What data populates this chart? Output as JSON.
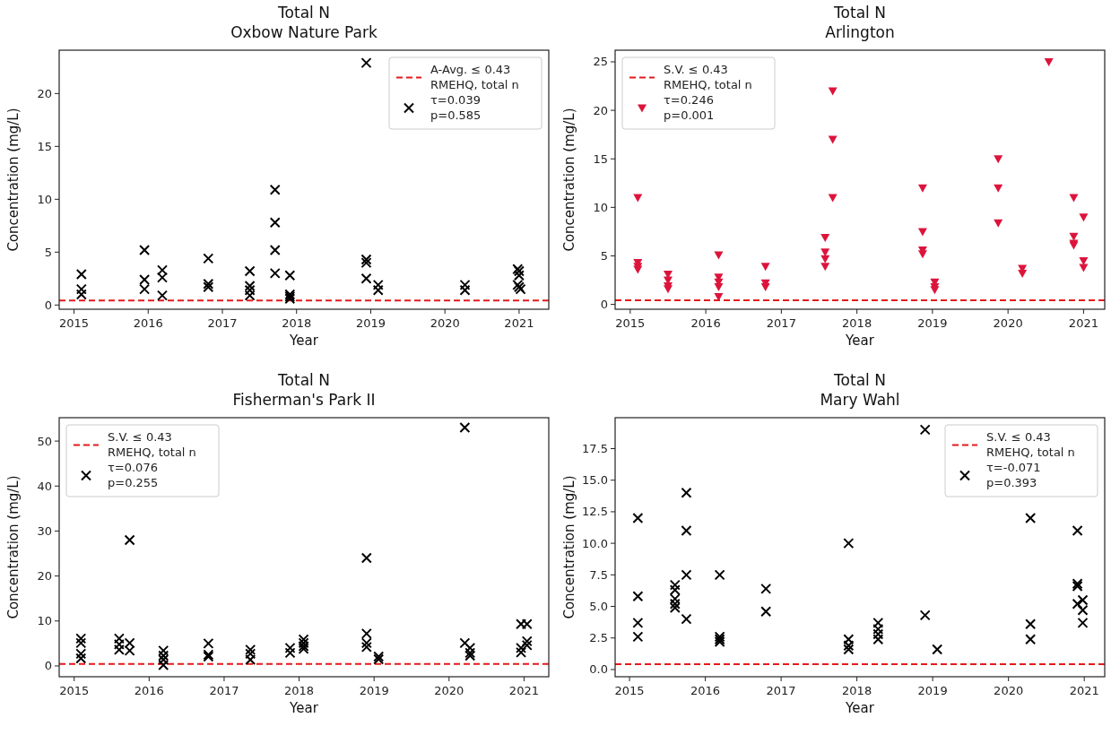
{
  "chart_data": [
    {
      "type": "scatter",
      "title": "Total N",
      "subtitle": "Oxbow Nature Park",
      "xlabel": "Year",
      "ylabel": "Concentration (mg/L)",
      "xlim": [
        2014.8,
        2021.4
      ],
      "ylim": [
        -0.4,
        24.1
      ],
      "xticks": [
        2015,
        2016,
        2017,
        2018,
        2019,
        2020,
        2021
      ],
      "yticks": [
        0,
        5,
        10,
        15,
        20
      ],
      "legend": "top right",
      "marker": "cross",
      "grid": false,
      "ref_lines": [
        {
          "axis": "y",
          "value": 0.43,
          "label": "A-Avg. ≤ 0.43\nRMEHQ, total n",
          "color": "#e31a1c",
          "line_style": "dashed"
        }
      ],
      "series": [
        {
          "name": "τ=0.039\np=0.585",
          "color": "#000000",
          "x": [
            2015.1,
            2015.1,
            2015.1,
            2015.95,
            2015.95,
            2015.95,
            2016.19,
            2016.19,
            2016.19,
            2016.81,
            2016.81,
            2016.81,
            2017.37,
            2017.37,
            2017.37,
            2017.37,
            2017.71,
            2017.71,
            2017.71,
            2017.71,
            2017.91,
            2017.91,
            2017.91,
            2017.91,
            2018.94,
            2018.94,
            2018.94,
            2018.94,
            2019.1,
            2019.1,
            2020.27,
            2020.27,
            2020.98,
            2021.0,
            2021.0,
            2020.98,
            2021.02,
            2021.0
          ],
          "values": [
            2.9,
            1.5,
            1.0,
            5.2,
            2.4,
            1.5,
            3.3,
            2.6,
            0.9,
            4.4,
            2.0,
            1.7,
            3.2,
            1.8,
            1.4,
            0.9,
            10.9,
            7.8,
            5.2,
            3.0,
            2.8,
            1.0,
            0.8,
            0.6,
            22.9,
            4.3,
            4.0,
            2.5,
            1.9,
            1.4,
            1.9,
            1.4,
            3.4,
            3.2,
            2.8,
            1.9,
            1.5,
            1.7
          ]
        }
      ]
    },
    {
      "type": "scatter",
      "title": "Total N",
      "subtitle": "Arlington",
      "xlabel": "Year",
      "ylabel": "Concentration (mg/L)",
      "xlim": [
        2014.8,
        2021.28
      ],
      "ylim": [
        -0.5,
        26.2
      ],
      "xticks": [
        2015,
        2016,
        2017,
        2018,
        2019,
        2020,
        2021
      ],
      "yticks": [
        0,
        5,
        10,
        15,
        20,
        25
      ],
      "legend": "top left",
      "marker": "triangle",
      "grid": false,
      "ref_lines": [
        {
          "axis": "y",
          "value": 0.43,
          "label": "S.V. ≤ 0.43\nRMEHQ, total n",
          "color": "#e31a1c",
          "line_style": "dashed"
        }
      ],
      "series": [
        {
          "name": "τ=0.246\np=0.001",
          "color": "#dc143c",
          "x": [
            2015.1,
            2015.1,
            2015.1,
            2015.1,
            2015.5,
            2015.5,
            2015.5,
            2015.5,
            2016.17,
            2016.17,
            2016.17,
            2016.17,
            2016.17,
            2016.79,
            2016.79,
            2016.79,
            2017.58,
            2017.58,
            2017.58,
            2017.58,
            2017.68,
            2017.68,
            2017.68,
            2018.87,
            2018.87,
            2018.87,
            2018.87,
            2019.03,
            2019.03,
            2019.03,
            2019.87,
            2019.87,
            2019.87,
            2020.19,
            2020.19,
            2020.54,
            2020.87,
            2020.87,
            2020.87,
            2020.87,
            2021.0,
            2021.0,
            2021.0
          ],
          "values": [
            11.0,
            4.3,
            3.9,
            3.6,
            3.1,
            2.5,
            1.9,
            1.6,
            5.1,
            2.8,
            2.3,
            1.8,
            0.8,
            3.9,
            2.2,
            1.8,
            6.9,
            5.4,
            4.7,
            3.9,
            22.0,
            17.0,
            11.0,
            12.0,
            7.5,
            5.6,
            5.2,
            2.3,
            1.8,
            1.5,
            15.0,
            12.0,
            8.4,
            3.7,
            3.2,
            25.0,
            11.0,
            7.0,
            6.3,
            6.1,
            9.0,
            4.5,
            3.8
          ]
        }
      ]
    },
    {
      "type": "scatter",
      "title": "Total N",
      "subtitle": "Fisherman's Park II",
      "xlabel": "Year",
      "ylabel": "Concentration (mg/L)",
      "xlim": [
        2014.8,
        2021.33
      ],
      "ylim": [
        -2.4,
        55.2
      ],
      "xticks": [
        2015,
        2016,
        2017,
        2018,
        2019,
        2020,
        2021
      ],
      "yticks": [
        0,
        10,
        20,
        30,
        40,
        50
      ],
      "legend": "top left",
      "marker": "cross",
      "grid": false,
      "ref_lines": [
        {
          "axis": "y",
          "value": 0.43,
          "label": "S.V. ≤ 0.43\nRMEHQ, total n",
          "color": "#e31a1c",
          "line_style": "dashed"
        }
      ],
      "series": [
        {
          "name": "τ=0.076\np=0.255",
          "color": "#000000",
          "x": [
            2015.09,
            2015.09,
            2015.09,
            2015.09,
            2015.6,
            2015.6,
            2015.6,
            2015.74,
            2015.74,
            2015.74,
            2016.19,
            2016.19,
            2016.19,
            2016.19,
            2016.79,
            2016.79,
            2016.79,
            2017.35,
            2017.35,
            2017.35,
            2017.88,
            2017.88,
            2018.06,
            2018.06,
            2018.06,
            2018.06,
            2018.9,
            2018.9,
            2018.9,
            2018.9,
            2019.06,
            2019.06,
            2020.21,
            2020.21,
            2020.28,
            2020.28,
            2020.28,
            2020.96,
            2020.96,
            2020.96,
            2021.04,
            2021.04,
            2021.04
          ],
          "values": [
            6.1,
            5.1,
            2.7,
            1.7,
            6.1,
            4.8,
            3.6,
            28,
            5.1,
            3.4,
            3.4,
            2.3,
            1.4,
            0.2,
            5.0,
            2.5,
            2.1,
            3.6,
            2.7,
            1.4,
            4.0,
            2.9,
            5.9,
            5.1,
            4.4,
            3.8,
            24,
            7.2,
            5.1,
            4.2,
            2.1,
            1.5,
            53,
            5.1,
            4.0,
            2.9,
            2.3,
            9.3,
            4.0,
            3.0,
            9.3,
            5.5,
            4.6
          ]
        }
      ]
    },
    {
      "type": "scatter",
      "title": "Total N",
      "subtitle": "Mary Wahl",
      "xlabel": "Year",
      "ylabel": "Concentration (mg/L)",
      "xlim": [
        2014.81,
        2021.27
      ],
      "ylim": [
        -0.57,
        19.95
      ],
      "xticks": [
        2015,
        2016,
        2017,
        2018,
        2019,
        2020,
        2021
      ],
      "yticks": [
        {
          "value": 0,
          "label": "0.0"
        },
        {
          "value": 2.5,
          "label": "2.5"
        },
        {
          "value": 5,
          "label": "5.0"
        },
        {
          "value": 7.5,
          "label": "7.5"
        },
        {
          "value": 10,
          "label": "10.0"
        },
        {
          "value": 12.5,
          "label": "12.5"
        },
        {
          "value": 15,
          "label": "15.0"
        },
        {
          "value": 17.5,
          "label": "17.5"
        }
      ],
      "legend": "top right",
      "marker": "cross",
      "grid": false,
      "ref_lines": [
        {
          "axis": "y",
          "value": 0.43,
          "label": "S.V. ≤ 0.43\nRMEHQ, total n",
          "color": "#e31a1c",
          "line_style": "dashed"
        }
      ],
      "series": [
        {
          "name": "τ=-0.071\np=0.393",
          "color": "#000000",
          "x": [
            2015.11,
            2015.11,
            2015.11,
            2015.11,
            2015.6,
            2015.6,
            2015.6,
            2015.6,
            2015.6,
            2015.75,
            2015.75,
            2015.75,
            2015.75,
            2016.19,
            2016.19,
            2016.19,
            2016.19,
            2016.8,
            2016.8,
            2017.89,
            2017.89,
            2017.89,
            2017.89,
            2018.28,
            2018.28,
            2018.28,
            2018.28,
            2018.9,
            2018.9,
            2019.06,
            2020.29,
            2020.29,
            2020.29,
            2020.91,
            2020.91,
            2020.91,
            2020.91,
            2020.98,
            2020.98,
            2020.98
          ],
          "values": [
            12.0,
            5.8,
            3.7,
            2.6,
            6.7,
            6.3,
            5.6,
            5.2,
            4.9,
            14.0,
            11.0,
            7.5,
            4.0,
            7.5,
            2.6,
            2.4,
            2.2,
            6.4,
            4.6,
            10.0,
            2.4,
            1.9,
            1.6,
            3.7,
            3.2,
            2.8,
            2.4,
            19.0,
            4.3,
            1.6,
            12.0,
            3.6,
            2.4,
            11.0,
            6.8,
            6.6,
            5.2,
            5.5,
            4.7,
            3.7
          ]
        }
      ]
    }
  ]
}
